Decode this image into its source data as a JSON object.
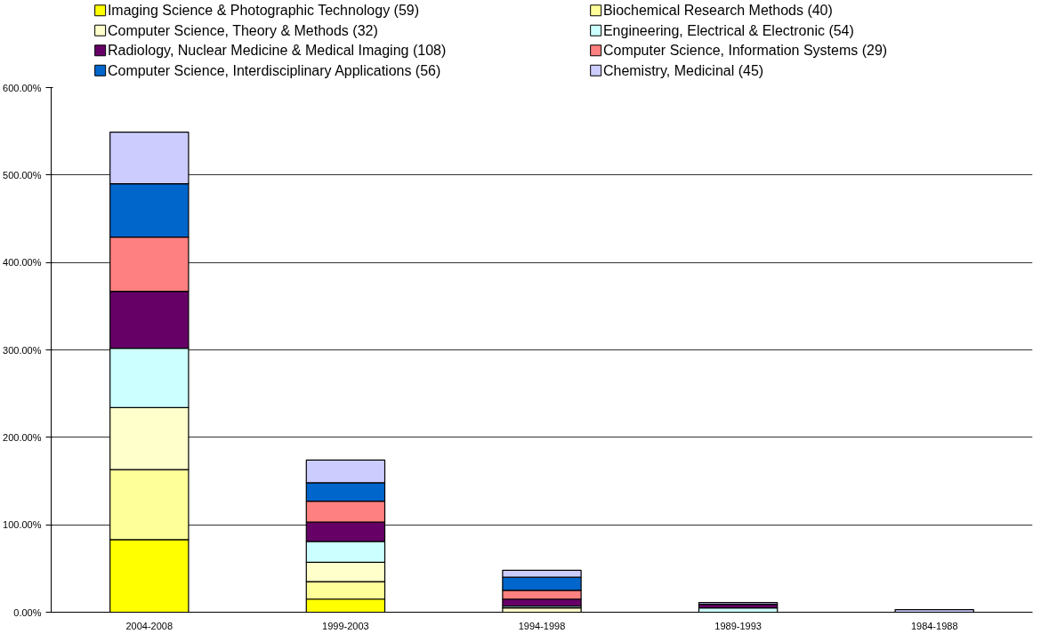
{
  "chart_data": {
    "type": "bar",
    "stacked": true,
    "categories": [
      "2004-2008",
      "1999-2003",
      "1994-1998",
      "1989-1993",
      "1984-1988"
    ],
    "series": [
      {
        "name": "Imaging Science & Photographic Technology (59)",
        "color": "#ffff00",
        "values": [
          83,
          15,
          null,
          null,
          null
        ]
      },
      {
        "name": "Biochemical Research Methods (40)",
        "color": "#ffff99",
        "values": [
          80,
          20,
          null,
          null,
          null
        ]
      },
      {
        "name": "Computer Science, Theory & Methods (32)",
        "color": "#ffffcc",
        "values": [
          71,
          22,
          5,
          null,
          null
        ]
      },
      {
        "name": "Engineering, Electrical & Electronic (54)",
        "color": "#ccffff",
        "values": [
          68,
          24,
          2,
          5,
          null
        ]
      },
      {
        "name": "Radiology, Nuclear Medicine & Medical Imaging (108)",
        "color": "#660066",
        "values": [
          65,
          22,
          8,
          4,
          null
        ]
      },
      {
        "name": "Computer Science, Information Systems (29)",
        "color": "#ff8080",
        "values": [
          62,
          24,
          10,
          null,
          null
        ]
      },
      {
        "name": "Computer Science, Interdisciplinary Applications (56)",
        "color": "#0066cc",
        "values": [
          61,
          21,
          15,
          null,
          null
        ]
      },
      {
        "name": "Chemistry, Medicinal (45)",
        "color": "#ccccff",
        "values": [
          59,
          26,
          8,
          2,
          3
        ]
      }
    ],
    "ylim": [
      0,
      600
    ],
    "yticks": [
      {
        "value": 0,
        "label": "0.00%"
      },
      {
        "value": 100,
        "label": "100.00%"
      },
      {
        "value": 200,
        "label": "200.00%"
      },
      {
        "value": 300,
        "label": "300.00%"
      },
      {
        "value": 400,
        "label": "400.00%"
      },
      {
        "value": 500,
        "label": "500.00%"
      },
      {
        "value": 600,
        "label": "600.00%"
      }
    ],
    "grid": "y",
    "legend": "top"
  }
}
